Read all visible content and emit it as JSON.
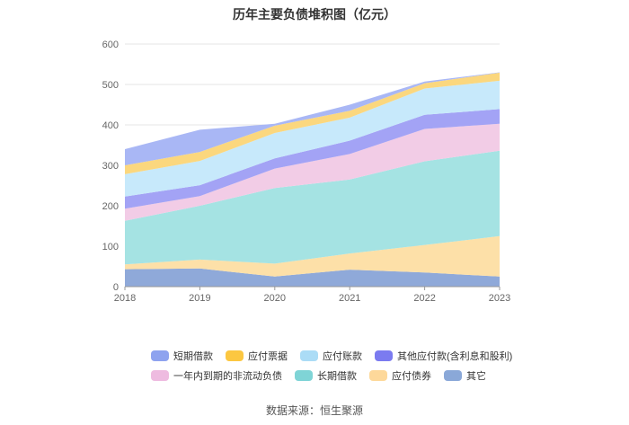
{
  "chart_data": {
    "type": "area",
    "title": "历年主要负债堆积图（亿元）",
    "stacked": true,
    "x": [
      "2018",
      "2019",
      "2020",
      "2021",
      "2022",
      "2023"
    ],
    "ylim": [
      0,
      600
    ],
    "yticks": [
      "0",
      "100",
      "200",
      "300",
      "400",
      "500",
      "600"
    ],
    "grid": true,
    "legend_position": "bottom",
    "series": [
      {
        "name": "其它",
        "color": "#8fa9d9",
        "values": [
          43,
          45,
          25,
          42,
          35,
          25
        ]
      },
      {
        "name": "应付债券",
        "color": "#fde0a8",
        "values": [
          12,
          22,
          32,
          40,
          68,
          100
        ]
      },
      {
        "name": "长期借款",
        "color": "#a5e3e3",
        "values": [
          108,
          133,
          187,
          183,
          207,
          211
        ]
      },
      {
        "name": "一年内到期的非流动负债",
        "color": "#f2cce6",
        "values": [
          30,
          24,
          48,
          63,
          80,
          67
        ]
      },
      {
        "name": "其他应付款(含利息和股利)",
        "color": "#a3a3f5",
        "values": [
          30,
          27,
          25,
          33,
          35,
          36
        ]
      },
      {
        "name": "应付账款",
        "color": "#c7e9fb",
        "values": [
          55,
          60,
          63,
          57,
          65,
          70
        ]
      },
      {
        "name": "应付票据",
        "color": "#fbd77e",
        "values": [
          22,
          22,
          18,
          17,
          13,
          20
        ]
      },
      {
        "name": "短期借款",
        "color": "#a9b7f5",
        "values": [
          40,
          55,
          5,
          15,
          4,
          1
        ]
      }
    ]
  },
  "legend": {
    "row1": [
      {
        "label": "短期借款",
        "color": "#8ea3ef"
      },
      {
        "label": "应付票据",
        "color": "#fcc741"
      },
      {
        "label": "应付账款",
        "color": "#abdcf6"
      },
      {
        "label": "其他应付款(含利息和股利)",
        "color": "#7b7bf0"
      }
    ],
    "row2": [
      {
        "label": "一年内到期的非流动负债",
        "color": "#eebbe0"
      },
      {
        "label": "长期借款",
        "color": "#7fd4d6"
      },
      {
        "label": "应付债券",
        "color": "#fdd89a"
      },
      {
        "label": "其它",
        "color": "#8aa8d8"
      }
    ]
  },
  "source": "数据来源：恒生聚源"
}
